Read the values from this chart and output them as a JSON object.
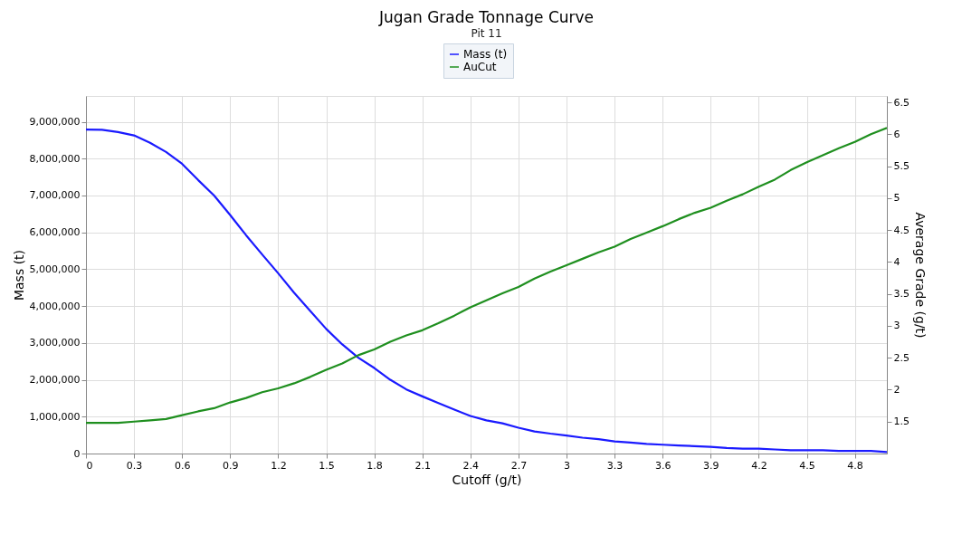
{
  "chart_data": {
    "type": "line",
    "title": "Jugan Grade Tonnage Curve",
    "subtitle": "Pit 11",
    "xlabel": "Cutoff (g/t)",
    "ylabel": "Mass (t)",
    "y2label": "Average Grade (g/t)",
    "x": [
      0,
      0.1,
      0.2,
      0.3,
      0.4,
      0.5,
      0.6,
      0.7,
      0.8,
      0.9,
      1.0,
      1.1,
      1.2,
      1.3,
      1.4,
      1.5,
      1.6,
      1.7,
      1.8,
      1.9,
      2.0,
      2.1,
      2.2,
      2.3,
      2.4,
      2.5,
      2.6,
      2.7,
      2.8,
      2.9,
      3.0,
      3.1,
      3.2,
      3.3,
      3.4,
      3.5,
      3.6,
      3.7,
      3.8,
      3.9,
      4.0,
      4.1,
      4.2,
      4.3,
      4.4,
      4.5,
      4.6,
      4.7,
      4.8,
      4.9,
      5.0
    ],
    "series": [
      {
        "name": "Mass (t)",
        "color": "#1a1aff",
        "values": [
          8790000,
          8780000,
          8720000,
          8630000,
          8430000,
          8180000,
          7860000,
          7420000,
          7000000,
          6470000,
          5920000,
          5400000,
          4890000,
          4360000,
          3870000,
          3380000,
          2960000,
          2600000,
          2320000,
          2000000,
          1740000,
          1550000,
          1370000,
          1190000,
          1020000,
          900000,
          820000,
          700000,
          600000,
          540000,
          490000,
          430000,
          390000,
          330000,
          300000,
          260000,
          240000,
          220000,
          200000,
          180000,
          150000,
          130000,
          130000,
          110000,
          90000,
          90000,
          90000,
          70000,
          70000,
          70000,
          40000
        ]
      },
      {
        "name": "AuCut",
        "color": "#1f8f1f",
        "axis": "y2",
        "values": [
          1.48,
          1.48,
          1.48,
          1.5,
          1.52,
          1.54,
          1.6,
          1.66,
          1.71,
          1.8,
          1.87,
          1.96,
          2.02,
          2.1,
          2.2,
          2.31,
          2.41,
          2.54,
          2.63,
          2.75,
          2.85,
          2.93,
          3.04,
          3.16,
          3.29,
          3.4,
          3.51,
          3.61,
          3.74,
          3.85,
          3.95,
          4.05,
          4.15,
          4.24,
          4.36,
          4.46,
          4.56,
          4.67,
          4.77,
          4.85,
          4.96,
          5.06,
          5.18,
          5.29,
          5.44,
          5.56,
          5.67,
          5.78,
          5.88,
          6.0,
          6.1
        ]
      }
    ],
    "xlim": [
      0,
      5
    ],
    "xticks": [
      0,
      0.3,
      0.6,
      0.9,
      1.2,
      1.5,
      1.8,
      2.1,
      2.4,
      2.7,
      3,
      3.3,
      3.6,
      3.9,
      4.2,
      4.5,
      4.8
    ],
    "ylim": [
      0,
      9700000
    ],
    "yticks": [
      0,
      {
        "value": 1000000,
        "label": "1,000,000"
      },
      {
        "value": 2000000,
        "label": "2,000,000"
      },
      {
        "value": 3000000,
        "label": "3,000,000"
      },
      {
        "value": 4000000,
        "label": "4,000,000"
      },
      {
        "value": 5000000,
        "label": "5,000,000"
      },
      {
        "value": 6000000,
        "label": "6,000,000"
      },
      {
        "value": 7000000,
        "label": "7,000,000"
      },
      {
        "value": 8000000,
        "label": "8,000,000"
      },
      {
        "value": 9000000,
        "label": "9,000,000"
      }
    ],
    "y2lim": [
      1.0,
      6.6
    ],
    "y2ticks": [
      1.5,
      2,
      2.5,
      3,
      3.5,
      4,
      4.5,
      5,
      5.5,
      6,
      6.5
    ],
    "grid": true,
    "legend": "top",
    "marker": "none",
    "line_style": "solid"
  }
}
